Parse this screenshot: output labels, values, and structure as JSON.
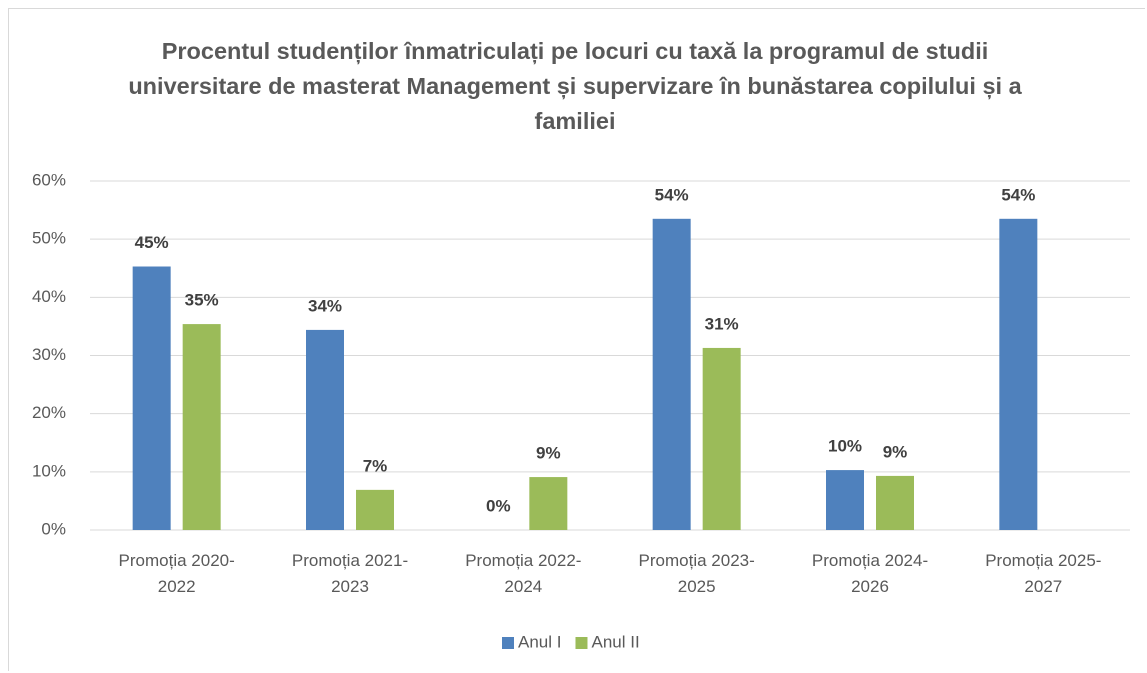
{
  "chart_data": {
    "type": "bar",
    "title": "Procentul studenților înmatriculați pe locuri cu taxă la programul de studii universitare de masterat Management și supervizare în bunăstarea copilului și a familiei",
    "categories": [
      "Promoția 2020-2022",
      "Promoția 2021-2023",
      "Promoția 2022-2024",
      "Promoția 2023-2025",
      "Promoția 2024-2026",
      "Promoția 2025-2027"
    ],
    "series": [
      {
        "name": "Anul I",
        "color": "#4f81bd",
        "values": [
          45.3,
          34.4,
          0,
          53.5,
          10.3,
          53.5
        ],
        "value_labels": [
          "45%",
          "34%",
          "0%",
          "54%",
          "10%",
          "54%"
        ]
      },
      {
        "name": "Anul II",
        "color": "#9bbb59",
        "values": [
          35.4,
          6.9,
          9.1,
          31.3,
          9.3,
          null
        ],
        "value_labels": [
          "35%",
          "7%",
          "9%",
          "31%",
          "9%",
          null
        ]
      }
    ],
    "ylim": [
      0,
      60
    ],
    "yticks": [
      {
        "value": 0,
        "label": "0%"
      },
      {
        "value": 10,
        "label": "10%"
      },
      {
        "value": 20,
        "label": "20%"
      },
      {
        "value": 30,
        "label": "30%"
      },
      {
        "value": 40,
        "label": "40%"
      },
      {
        "value": 50,
        "label": "50%"
      },
      {
        "value": 60,
        "label": "60%"
      }
    ],
    "grid": true,
    "legend": "bottom"
  }
}
